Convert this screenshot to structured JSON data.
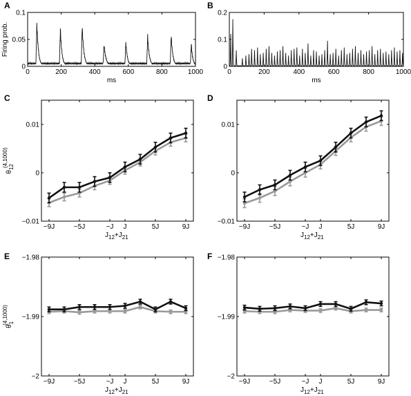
{
  "chart_data": [
    {
      "panel": "A",
      "type": "line",
      "ylabel": "Firing prob.",
      "xlabel": "ms",
      "xlim": [
        0,
        1000
      ],
      "ylim": [
        0,
        0.1
      ],
      "xticks": [
        0,
        200,
        400,
        600,
        800,
        1000
      ],
      "yticks": [
        0,
        0.05,
        0.1
      ],
      "yticklabels": [
        "0",
        "0.05",
        "0.1"
      ],
      "series": [
        {
          "color": "#111111",
          "bursts": [
            {
              "t": 55,
              "peak": 0.085,
              "width": 28
            },
            {
              "t": 195,
              "peak": 0.075,
              "width": 28
            },
            {
              "t": 325,
              "peak": 0.08,
              "width": 30
            },
            {
              "t": 455,
              "peak": 0.043,
              "width": 36
            },
            {
              "t": 585,
              "peak": 0.047,
              "width": 30
            },
            {
              "t": 715,
              "peak": 0.06,
              "width": 30
            },
            {
              "t": 855,
              "peak": 0.062,
              "width": 30
            },
            {
              "t": 975,
              "peak": 0.045,
              "width": 26
            }
          ],
          "baseline": 0.004
        }
      ]
    },
    {
      "panel": "B",
      "type": "line",
      "ylabel": "",
      "xlabel": "ms",
      "xlim": [
        0,
        1000
      ],
      "ylim": [
        0,
        0.2
      ],
      "xticks": [
        0,
        200,
        400,
        600,
        800,
        1000
      ],
      "yticks": [
        0,
        0.1,
        0.2
      ],
      "yticklabels": [
        "0",
        "0.1",
        "0.2"
      ],
      "series": [
        {
          "color": "#111111",
          "peaks": [
            {
              "t": 8,
              "peak": 0.12
            },
            {
              "t": 20,
              "peak": 0.175
            },
            {
              "t": 40,
              "peak": 0.06
            },
            {
              "t": 75,
              "peak": 0.03
            },
            {
              "t": 95,
              "peak": 0.04
            },
            {
              "t": 113,
              "peak": 0.045
            },
            {
              "t": 128,
              "peak": 0.065
            },
            {
              "t": 145,
              "peak": 0.06
            },
            {
              "t": 162,
              "peak": 0.07
            },
            {
              "t": 178,
              "peak": 0.045
            },
            {
              "t": 195,
              "peak": 0.05
            },
            {
              "t": 212,
              "peak": 0.065
            },
            {
              "t": 228,
              "peak": 0.075
            },
            {
              "t": 244,
              "peak": 0.05
            },
            {
              "t": 260,
              "peak": 0.04
            },
            {
              "t": 276,
              "peak": 0.055
            },
            {
              "t": 292,
              "peak": 0.06
            },
            {
              "t": 308,
              "peak": 0.075
            },
            {
              "t": 324,
              "peak": 0.05
            },
            {
              "t": 340,
              "peak": 0.04
            },
            {
              "t": 356,
              "peak": 0.06
            },
            {
              "t": 372,
              "peak": 0.065
            },
            {
              "t": 388,
              "peak": 0.07
            },
            {
              "t": 404,
              "peak": 0.04
            },
            {
              "t": 420,
              "peak": 0.065
            },
            {
              "t": 436,
              "peak": 0.05
            },
            {
              "t": 452,
              "peak": 0.085
            },
            {
              "t": 468,
              "peak": 0.04
            },
            {
              "t": 484,
              "peak": 0.06
            },
            {
              "t": 500,
              "peak": 0.055
            },
            {
              "t": 516,
              "peak": 0.04
            },
            {
              "t": 532,
              "peak": 0.045
            },
            {
              "t": 548,
              "peak": 0.06
            },
            {
              "t": 564,
              "peak": 0.095
            },
            {
              "t": 580,
              "peak": 0.045
            },
            {
              "t": 596,
              "peak": 0.05
            },
            {
              "t": 612,
              "peak": 0.065
            },
            {
              "t": 628,
              "peak": 0.04
            },
            {
              "t": 644,
              "peak": 0.06
            },
            {
              "t": 660,
              "peak": 0.07
            },
            {
              "t": 676,
              "peak": 0.045
            },
            {
              "t": 692,
              "peak": 0.05
            },
            {
              "t": 708,
              "peak": 0.065
            },
            {
              "t": 724,
              "peak": 0.075
            },
            {
              "t": 740,
              "peak": 0.05
            },
            {
              "t": 756,
              "peak": 0.06
            },
            {
              "t": 772,
              "peak": 0.045
            },
            {
              "t": 788,
              "peak": 0.055
            },
            {
              "t": 804,
              "peak": 0.06
            },
            {
              "t": 820,
              "peak": 0.075
            },
            {
              "t": 836,
              "peak": 0.045
            },
            {
              "t": 852,
              "peak": 0.06
            },
            {
              "t": 868,
              "peak": 0.065
            },
            {
              "t": 884,
              "peak": 0.05
            },
            {
              "t": 900,
              "peak": 0.055
            },
            {
              "t": 916,
              "peak": 0.045
            },
            {
              "t": 932,
              "peak": 0.06
            },
            {
              "t": 948,
              "peak": 0.07
            },
            {
              "t": 964,
              "peak": 0.055
            },
            {
              "t": 980,
              "peak": 0.06
            },
            {
              "t": 995,
              "peak": 0.05
            }
          ]
        }
      ]
    },
    {
      "panel": "C",
      "type": "line",
      "ylabel_main": "θ",
      "ylabel_sub": "12",
      "ylabel_sup": "(4,1000)",
      "xlabel_main": "J",
      "xlabel_sub1": "12",
      "xlabel_plus": "+J",
      "xlabel_sub2": "21",
      "xlim": [
        -10,
        10
      ],
      "ylim": [
        -0.01,
        0.015
      ],
      "xticks": [
        -9,
        -5,
        -1,
        1,
        5,
        9
      ],
      "xticklabels": [
        "−9J",
        "−5J",
        "−J",
        "J",
        "5J",
        "9J"
      ],
      "yticks": [
        -0.01,
        0,
        0.01
      ],
      "yticklabels": [
        "−0.01",
        "0",
        "0.01"
      ],
      "x": [
        -9,
        -7,
        -5,
        -3,
        -1,
        1,
        3,
        5,
        7,
        9
      ],
      "series": [
        {
          "color": "#111111",
          "values": [
            -0.0052,
            -0.003,
            -0.003,
            -0.0018,
            -0.001,
            0.0012,
            0.0028,
            0.0053,
            0.0072,
            0.0082
          ],
          "err": 0.001
        },
        {
          "color": "#999999",
          "values": [
            -0.0062,
            -0.005,
            -0.0042,
            -0.0027,
            -0.0016,
            0.0005,
            0.0022,
            0.0045,
            0.0063,
            0.0072
          ],
          "err": 0.0008
        }
      ]
    },
    {
      "panel": "D",
      "type": "line",
      "ylabel_main": "",
      "ylabel_sub": "",
      "ylabel_sup": "",
      "xlabel_main": "J",
      "xlabel_sub1": "12",
      "xlabel_plus": "+J",
      "xlabel_sub2": "21",
      "xlim": [
        -10,
        10
      ],
      "ylim": [
        -0.01,
        0.015
      ],
      "xticks": [
        -9,
        -5,
        -1,
        1,
        5,
        9
      ],
      "xticklabels": [
        "−9J",
        "−5J",
        "−J",
        "J",
        "5J",
        "9J"
      ],
      "yticks": [
        -0.01,
        0,
        0.01
      ],
      "yticklabels": [
        "−0.01",
        "0",
        "0.01"
      ],
      "x": [
        -9,
        -7,
        -5,
        -3,
        -1,
        1,
        3,
        5,
        7,
        9
      ],
      "series": [
        {
          "color": "#111111",
          "values": [
            -0.005,
            -0.0035,
            -0.0025,
            -0.0005,
            0.0012,
            0.0025,
            0.0053,
            0.0082,
            0.0105,
            0.0118
          ],
          "err": 0.001
        },
        {
          "color": "#999999",
          "values": [
            -0.0063,
            -0.0052,
            -0.0038,
            -0.0018,
            0.0,
            0.0017,
            0.0045,
            0.0073,
            0.0095,
            0.0107
          ],
          "err": 0.0009
        }
      ]
    },
    {
      "panel": "E",
      "type": "line",
      "ylabel_main": "θ",
      "ylabel_sub": "1",
      "ylabel_sup": "(4,1000)",
      "xlabel_main": "J",
      "xlabel_sub1": "12",
      "xlabel_plus": "+J",
      "xlabel_sub2": "21",
      "xlim": [
        -10,
        10
      ],
      "ylim": [
        -2.0,
        -1.98
      ],
      "xticks": [
        -9,
        -5,
        -1,
        1,
        5,
        9
      ],
      "xticklabels": [
        "−9J",
        "−5J",
        "−J",
        "J",
        "5J",
        "9J"
      ],
      "yticks": [
        -2.0,
        -1.99,
        -1.98
      ],
      "yticklabels": [
        "−2",
        "−1.99",
        "−1.98"
      ],
      "x": [
        -9,
        -7,
        -5,
        -3,
        -1,
        1,
        3,
        5,
        7,
        9
      ],
      "series": [
        {
          "color": "#111111",
          "values": [
            -1.9888,
            -1.9888,
            -1.9884,
            -1.9884,
            -1.9884,
            -1.9882,
            -1.9875,
            -1.9888,
            -1.9875,
            -1.9886
          ],
          "err": 0.0004
        },
        {
          "color": "#999999",
          "values": [
            -1.9892,
            -1.9891,
            -1.9893,
            -1.9891,
            -1.9891,
            -1.9891,
            -1.9884,
            -1.9891,
            -1.9892,
            -1.9892
          ],
          "err": 0.0003
        }
      ]
    },
    {
      "panel": "F",
      "type": "line",
      "ylabel_main": "",
      "ylabel_sub": "",
      "ylabel_sup": "",
      "xlabel_main": "J",
      "xlabel_sub1": "12",
      "xlabel_plus": "+J",
      "xlabel_sub2": "21",
      "xlim": [
        -10,
        10
      ],
      "ylim": [
        -2.0,
        -1.98
      ],
      "xticks": [
        -9,
        -5,
        -1,
        1,
        5,
        9
      ],
      "xticklabels": [
        "−9J",
        "−5J",
        "−J",
        "J",
        "5J",
        "9J"
      ],
      "yticks": [
        -2.0,
        -1.99,
        -1.98
      ],
      "yticklabels": [
        "−2",
        "−1.99",
        "−1.98"
      ],
      "x": [
        -9,
        -7,
        -5,
        -3,
        -1,
        1,
        3,
        5,
        7,
        9
      ],
      "series": [
        {
          "color": "#111111",
          "values": [
            -1.9885,
            -1.9887,
            -1.9886,
            -1.9883,
            -1.9886,
            -1.9879,
            -1.9879,
            -1.9887,
            -1.9876,
            -1.9878
          ],
          "err": 0.0004
        },
        {
          "color": "#999999",
          "values": [
            -1.9891,
            -1.9892,
            -1.9892,
            -1.9889,
            -1.989,
            -1.989,
            -1.9886,
            -1.9891,
            -1.9889,
            -1.9889
          ],
          "err": 0.0003
        }
      ]
    }
  ]
}
